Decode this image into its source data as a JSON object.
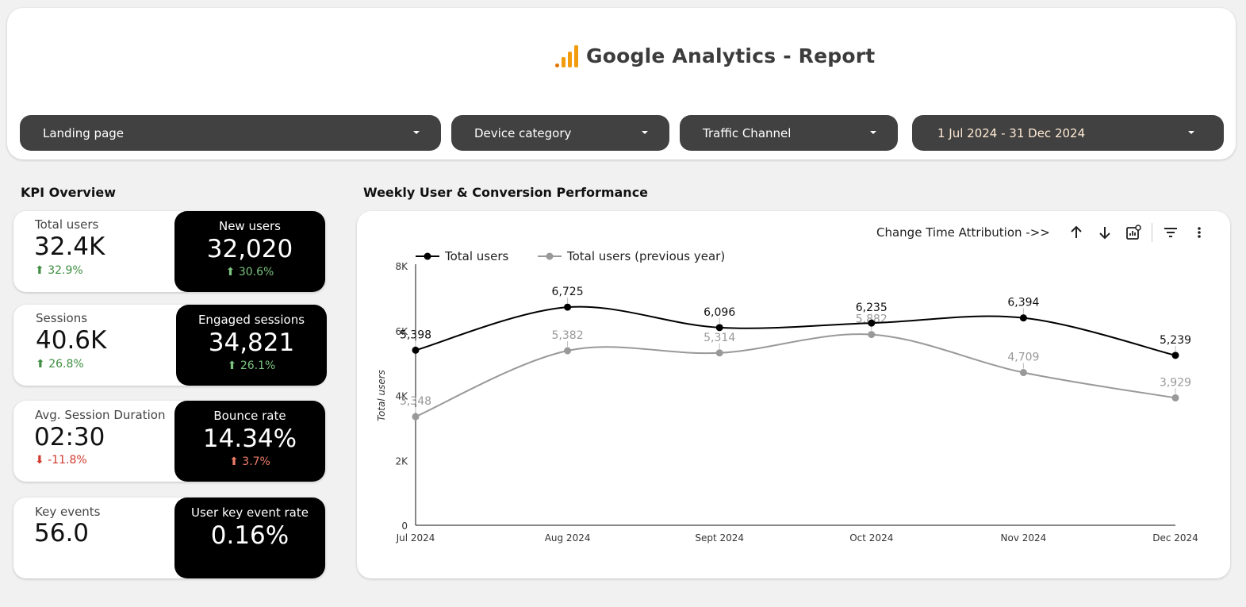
{
  "header": {
    "title": "Google Analytics - Report",
    "logo_icon": "google-analytics-logo",
    "brand_color": "#f29b0d"
  },
  "filters": [
    {
      "label": "Landing page"
    },
    {
      "label": "Device category"
    },
    {
      "label": "Traffic Channel"
    },
    {
      "label": "1 Jul 2024 - 31 Dec 2024"
    }
  ],
  "kpi_section": {
    "title": "KPI Overview",
    "cards": [
      {
        "label": "Total users",
        "value": "32.4K",
        "delta": "32.9%",
        "trend": "up",
        "highlight": {
          "label": "New users",
          "value": "32,020",
          "delta": "30.6%",
          "trend": "up"
        }
      },
      {
        "label": "Sessions",
        "value": "40.6K",
        "delta": "26.8%",
        "trend": "up",
        "highlight": {
          "label": "Engaged sessions",
          "value": "34,821",
          "delta": "26.1%",
          "trend": "up"
        }
      },
      {
        "label": "Avg. Session Duration",
        "value": "02:30",
        "delta": "-11.8%",
        "trend": "down",
        "highlight": {
          "label": "Bounce rate",
          "value": "14.34%",
          "delta": "3.7%",
          "trend": "up-bad"
        }
      },
      {
        "label": "Key events",
        "value": "56.0",
        "delta": "",
        "highlight": {
          "label": "User key event rate",
          "value": "0.16%",
          "delta": ""
        }
      }
    ]
  },
  "chart_section": {
    "title": "Weekly User & Conversion Performance",
    "toolbar": {
      "attribution_label": "Change Time Attribution ->>",
      "icons": [
        "arrow-up-icon",
        "arrow-down-icon",
        "chart-settings-icon",
        "filter-icon",
        "more-vert-icon"
      ]
    }
  },
  "chart_data": {
    "type": "line",
    "categories": [
      "Jul 2024",
      "Aug 2024",
      "Sept 2024",
      "Oct 2024",
      "Nov 2024",
      "Dec 2024"
    ],
    "series": [
      {
        "name": "Total users",
        "color": "#000000",
        "values": [
          5398,
          6725,
          6096,
          6235,
          6394,
          5239
        ],
        "labels": [
          "5,398",
          "6,725",
          "6,096",
          "6,235",
          "6,394",
          "5,239"
        ]
      },
      {
        "name": "Total users (previous year)",
        "color": "#999999",
        "values": [
          3348,
          5382,
          5314,
          5882,
          4709,
          3929
        ],
        "labels": [
          "3,348",
          "5,382",
          "5,314",
          "5,882",
          "4,709",
          "3,929"
        ]
      }
    ],
    "ylabel": "Total users",
    "xlabel": "",
    "ylim": [
      0,
      8000
    ],
    "yticks": [
      {
        "v": 0,
        "label": "0"
      },
      {
        "v": 2000,
        "label": "2K"
      },
      {
        "v": 4000,
        "label": "4K"
      },
      {
        "v": 6000,
        "label": "6K"
      },
      {
        "v": 8000,
        "label": "8K"
      }
    ],
    "legend_position": "top-left",
    "grid": false,
    "smooth": true,
    "data_labels": true
  }
}
